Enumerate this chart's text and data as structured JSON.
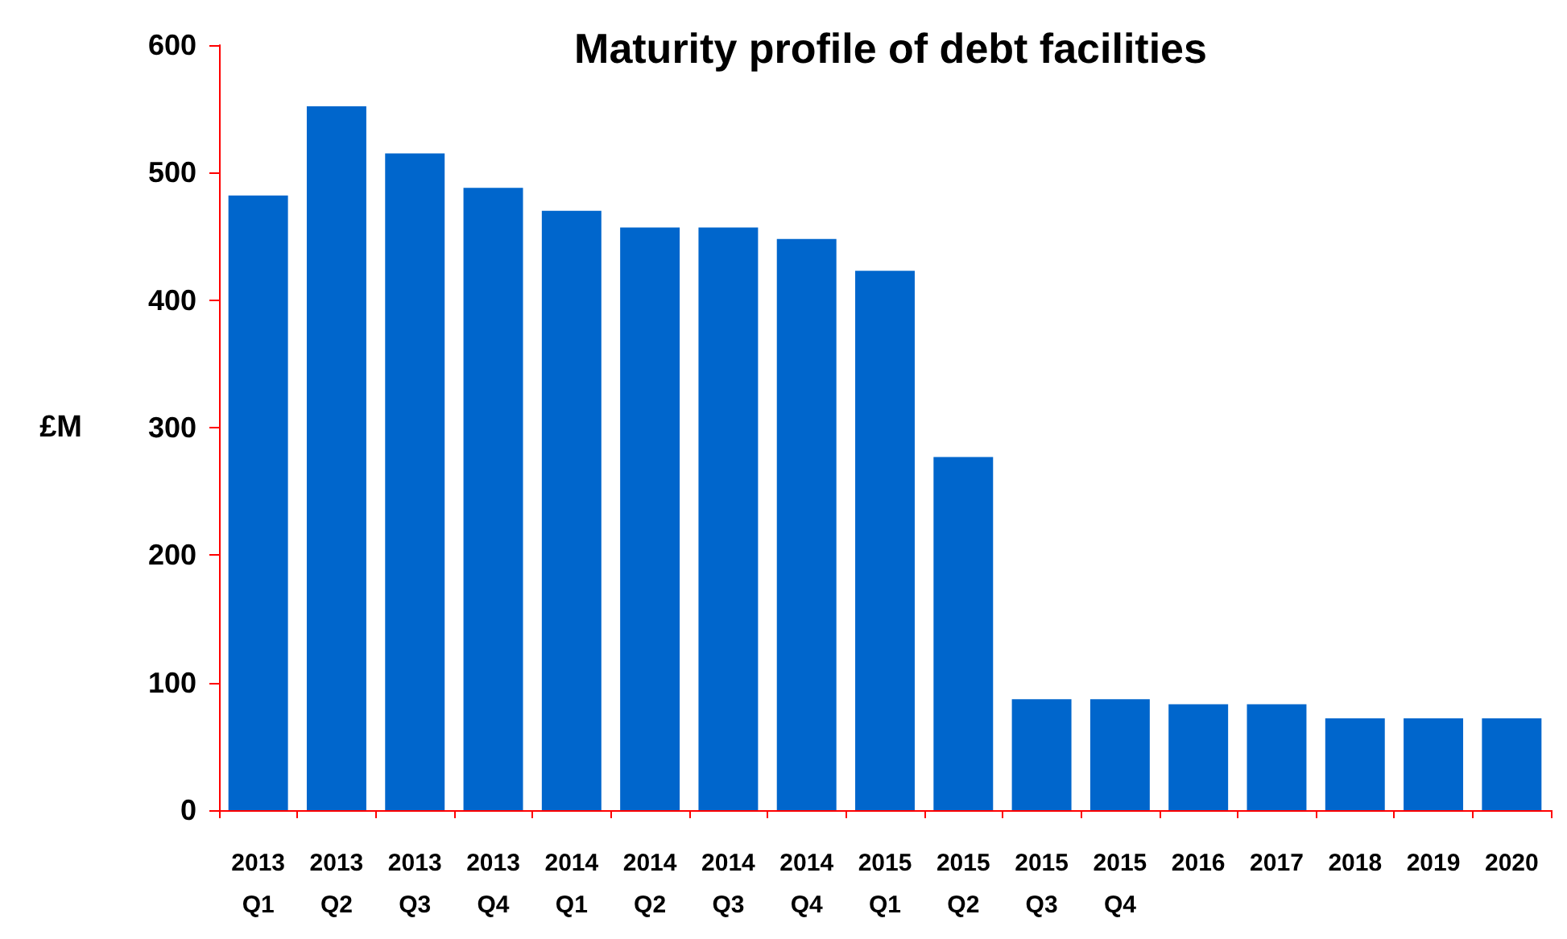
{
  "chart_data": {
    "type": "bar",
    "title": "Maturity profile of debt facilities",
    "ylabel": "£M",
    "categories": [
      "2013\nQ1",
      "2013\nQ2",
      "2013\nQ3",
      "2013\nQ4",
      "2014\nQ1",
      "2014\nQ2",
      "2014\nQ3",
      "2014\nQ4",
      "2015\nQ1",
      "2015\nQ2",
      "2015\nQ3",
      "2015\nQ4",
      "2016",
      "2017",
      "2018",
      "2019",
      "2020"
    ],
    "values": [
      482,
      552,
      515,
      488,
      470,
      457,
      457,
      448,
      423,
      277,
      87,
      87,
      83,
      83,
      72,
      72,
      72
    ],
    "color": "#0066cc",
    "ylim": [
      0,
      600
    ],
    "yticks": [
      0,
      100,
      200,
      300,
      400,
      500,
      600
    ],
    "grid": false
  }
}
